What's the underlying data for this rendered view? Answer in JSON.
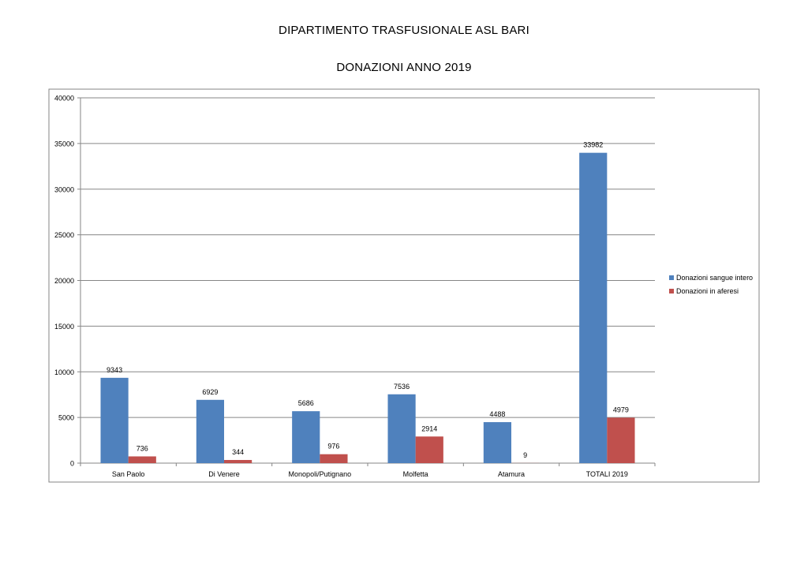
{
  "header": {
    "title": "DIPARTIMENTO TRASFUSIONALE ASL BARI",
    "subtitle": "DONAZIONI ANNO 2019"
  },
  "chart_data": {
    "type": "bar",
    "categories": [
      "San Paolo",
      "Di Venere",
      "Monopoli/Putignano",
      "Molfetta",
      "Atamura",
      "TOTALI 2019"
    ],
    "series": [
      {
        "name": "Donazioni sangue intero",
        "color": "#4f81bd",
        "values": [
          9343,
          6929,
          5686,
          7536,
          4488,
          33982
        ]
      },
      {
        "name": "Donazioni in aferesi",
        "color": "#c0504d",
        "values": [
          736,
          344,
          976,
          2914,
          9,
          4979
        ]
      }
    ],
    "ylim": [
      0,
      40000
    ],
    "yticks": [
      0,
      5000,
      10000,
      15000,
      20000,
      25000,
      30000,
      35000,
      40000
    ],
    "grid": true,
    "legend": "right",
    "data_labels": true
  }
}
